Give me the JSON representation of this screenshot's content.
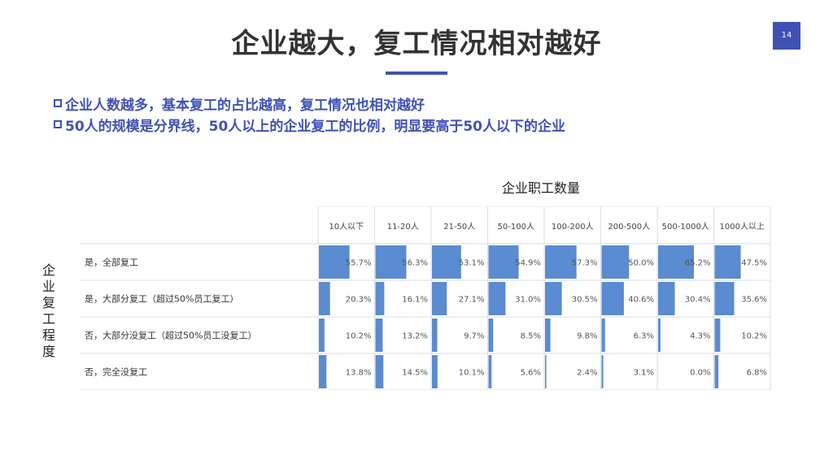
{
  "page": {
    "title": "企业越大，复工情况相对越好",
    "page_number": "14",
    "accent_color": "#3f51b5",
    "bullets": [
      "企业人数越多，基本复工的占比越高，复工情况也相对越好",
      "50人的规模是分界线，50人以上的企业复工的比例，明显要高于50人以下的企业"
    ]
  },
  "chart_data": {
    "type": "table",
    "title": "",
    "xlabel": "企业职工数量",
    "ylabel": "企业复工程度",
    "bar_color": "#5b8bd0",
    "columns": [
      "10人以下",
      "11-20人",
      "21-50人",
      "50-100人",
      "100-200人",
      "200-500人",
      "500-1000人",
      "1000人以上"
    ],
    "rows": [
      {
        "label": "是，全部复工",
        "values": [
          55.7,
          56.3,
          53.1,
          54.9,
          57.3,
          50.0,
          65.2,
          47.5
        ],
        "labels": [
          "55.7%",
          "56.3%",
          "53.1%",
          "54.9%",
          "57.3%",
          "50.0%",
          "65.2%",
          "47.5%"
        ]
      },
      {
        "label": "是，大部分复工（超过50%员工复工）",
        "values": [
          20.3,
          16.1,
          27.1,
          31.0,
          30.5,
          40.6,
          30.4,
          35.6
        ],
        "labels": [
          "20.3%",
          "16.1%",
          "27.1%",
          "31.0%",
          "30.5%",
          "40.6%",
          "30.4%",
          "35.6%"
        ]
      },
      {
        "label": "否，大部分没复工（超过50%员工没复工）",
        "values": [
          10.2,
          13.2,
          9.7,
          8.5,
          9.8,
          6.3,
          4.3,
          10.2
        ],
        "labels": [
          "10.2%",
          "13.2%",
          "9.7%",
          "8.5%",
          "9.8%",
          "6.3%",
          "4.3%",
          "10.2%"
        ]
      },
      {
        "label": "否，完全没复工",
        "values": [
          13.8,
          14.5,
          10.1,
          5.6,
          2.4,
          3.1,
          0.0,
          6.8
        ],
        "labels": [
          "13.8%",
          "14.5%",
          "10.1%",
          "5.6%",
          "2.4%",
          "3.1%",
          "0.0%",
          "6.8%"
        ]
      }
    ],
    "ylim": [
      0,
      100
    ]
  }
}
